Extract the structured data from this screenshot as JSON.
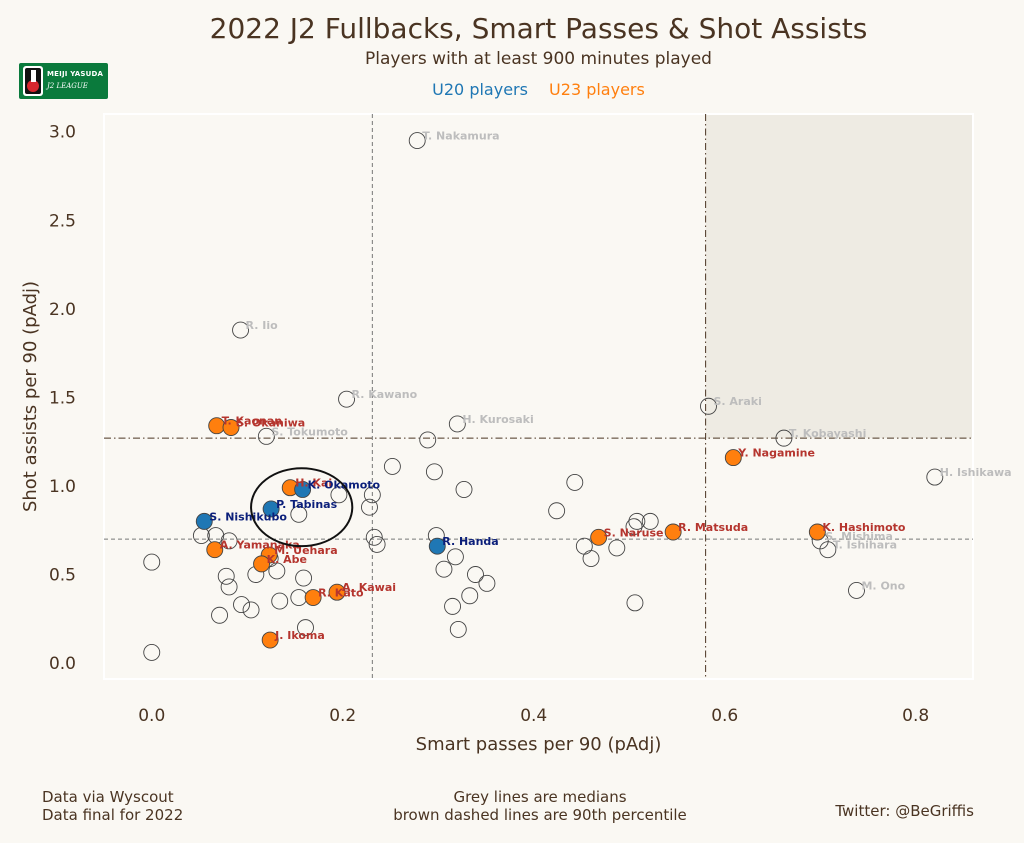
{
  "header": {
    "title": "2022 J2 Fullbacks, Smart Passes & Shot Assists",
    "subtitle": "Players with at least 900 minutes played",
    "legend_u20": "U20 players",
    "legend_u23": "U23 players"
  },
  "logo": {
    "line1": "MEIJI YASUDA",
    "line2": "J2 LEAGUE"
  },
  "footer": {
    "left_line1": "Data via Wyscout",
    "left_line2": "Data final for 2022",
    "mid_line1": "Grey lines are medians",
    "mid_line2": "brown dashed lines are 90th percentile",
    "right": "Twitter: @BeGriffis"
  },
  "colors": {
    "u20": "#1f77b4",
    "u23": "#ff7f0e",
    "u20_label": "#0b1f7a",
    "u23_label": "#b5352e",
    "other_label": "#bdbdbd",
    "quadrant": "#eeebe3"
  },
  "chart_data": {
    "type": "scatter",
    "title": "2022 J2 Fullbacks, Smart Passes & Shot Assists",
    "xlabel": "Smart passes per 90 (pAdj)",
    "ylabel": "Shot assists per 90 (pAdj)",
    "xlim": [
      -0.05,
      0.86
    ],
    "ylim": [
      -0.09,
      3.1
    ],
    "xticks": [
      "0.0",
      "0.2",
      "0.4",
      "0.6",
      "0.8"
    ],
    "xtick_values": [
      0,
      0.2,
      0.4,
      0.6,
      0.8
    ],
    "yticks": [
      "0.0",
      "0.5",
      "1.0",
      "1.5",
      "2.0",
      "2.5",
      "3.0"
    ],
    "ytick_values": [
      0,
      0.5,
      1.0,
      1.5,
      2.0,
      2.5,
      3.0
    ],
    "median_x": 0.231,
    "median_y": 0.7,
    "p90_x": 0.58,
    "p90_y": 1.27,
    "highlight_ellipse": {
      "cx": 0.157,
      "cy": 0.88,
      "rx": 0.053,
      "ry": 0.22
    },
    "points": [
      {
        "x": 0.278,
        "y": 2.95,
        "group": "other",
        "label": "T. Nakamura"
      },
      {
        "x": 0.093,
        "y": 1.88,
        "group": "other",
        "label": "R. Iio"
      },
      {
        "x": 0.204,
        "y": 1.49,
        "group": "other",
        "label": "R. Kawano"
      },
      {
        "x": 0.32,
        "y": 1.35,
        "group": "other",
        "label": "H. Kurosaki"
      },
      {
        "x": 0.583,
        "y": 1.45,
        "group": "other",
        "label": "S. Araki"
      },
      {
        "x": 0.662,
        "y": 1.27,
        "group": "other",
        "label": "T. Kobayashi"
      },
      {
        "x": 0.82,
        "y": 1.05,
        "group": "other",
        "label": "H. Ishikawa"
      },
      {
        "x": 0.12,
        "y": 1.28,
        "group": "other",
        "label": "S. Tokumoto"
      },
      {
        "x": 0.7,
        "y": 0.69,
        "group": "other",
        "label": "S. Mishima"
      },
      {
        "x": 0.708,
        "y": 0.64,
        "group": "other",
        "label": "T. Ishihara"
      },
      {
        "x": 0.738,
        "y": 0.41,
        "group": "other",
        "label": "M. Ono"
      },
      {
        "x": 0.0,
        "y": 0.57,
        "group": "other",
        "label": ""
      },
      {
        "x": 0.0,
        "y": 0.06,
        "group": "other",
        "label": ""
      },
      {
        "x": 0.289,
        "y": 1.26,
        "group": "other",
        "label": ""
      },
      {
        "x": 0.252,
        "y": 1.11,
        "group": "other",
        "label": ""
      },
      {
        "x": 0.296,
        "y": 1.08,
        "group": "other",
        "label": ""
      },
      {
        "x": 0.327,
        "y": 0.98,
        "group": "other",
        "label": ""
      },
      {
        "x": 0.443,
        "y": 1.02,
        "group": "other",
        "label": ""
      },
      {
        "x": 0.424,
        "y": 0.86,
        "group": "other",
        "label": ""
      },
      {
        "x": 0.508,
        "y": 0.8,
        "group": "other",
        "label": ""
      },
      {
        "x": 0.522,
        "y": 0.8,
        "group": "other",
        "label": ""
      },
      {
        "x": 0.505,
        "y": 0.77,
        "group": "other",
        "label": ""
      },
      {
        "x": 0.453,
        "y": 0.66,
        "group": "other",
        "label": ""
      },
      {
        "x": 0.46,
        "y": 0.59,
        "group": "other",
        "label": ""
      },
      {
        "x": 0.487,
        "y": 0.65,
        "group": "other",
        "label": ""
      },
      {
        "x": 0.506,
        "y": 0.34,
        "group": "other",
        "label": ""
      },
      {
        "x": 0.298,
        "y": 0.72,
        "group": "other",
        "label": ""
      },
      {
        "x": 0.306,
        "y": 0.53,
        "group": "other",
        "label": ""
      },
      {
        "x": 0.318,
        "y": 0.6,
        "group": "other",
        "label": ""
      },
      {
        "x": 0.339,
        "y": 0.5,
        "group": "other",
        "label": ""
      },
      {
        "x": 0.351,
        "y": 0.45,
        "group": "other",
        "label": ""
      },
      {
        "x": 0.333,
        "y": 0.38,
        "group": "other",
        "label": ""
      },
      {
        "x": 0.315,
        "y": 0.32,
        "group": "other",
        "label": ""
      },
      {
        "x": 0.321,
        "y": 0.19,
        "group": "other",
        "label": ""
      },
      {
        "x": 0.231,
        "y": 0.95,
        "group": "other",
        "label": ""
      },
      {
        "x": 0.228,
        "y": 0.88,
        "group": "other",
        "label": ""
      },
      {
        "x": 0.196,
        "y": 0.95,
        "group": "other",
        "label": ""
      },
      {
        "x": 0.154,
        "y": 0.84,
        "group": "other",
        "label": ""
      },
      {
        "x": 0.233,
        "y": 0.71,
        "group": "other",
        "label": ""
      },
      {
        "x": 0.236,
        "y": 0.67,
        "group": "other",
        "label": ""
      },
      {
        "x": 0.052,
        "y": 0.72,
        "group": "other",
        "label": ""
      },
      {
        "x": 0.067,
        "y": 0.72,
        "group": "other",
        "label": ""
      },
      {
        "x": 0.081,
        "y": 0.69,
        "group": "other",
        "label": ""
      },
      {
        "x": 0.124,
        "y": 0.59,
        "group": "other",
        "label": ""
      },
      {
        "x": 0.131,
        "y": 0.52,
        "group": "other",
        "label": ""
      },
      {
        "x": 0.109,
        "y": 0.5,
        "group": "other",
        "label": ""
      },
      {
        "x": 0.078,
        "y": 0.49,
        "group": "other",
        "label": ""
      },
      {
        "x": 0.081,
        "y": 0.43,
        "group": "other",
        "label": ""
      },
      {
        "x": 0.159,
        "y": 0.48,
        "group": "other",
        "label": ""
      },
      {
        "x": 0.154,
        "y": 0.37,
        "group": "other",
        "label": ""
      },
      {
        "x": 0.134,
        "y": 0.35,
        "group": "other",
        "label": ""
      },
      {
        "x": 0.094,
        "y": 0.33,
        "group": "other",
        "label": ""
      },
      {
        "x": 0.104,
        "y": 0.3,
        "group": "other",
        "label": ""
      },
      {
        "x": 0.071,
        "y": 0.27,
        "group": "other",
        "label": ""
      },
      {
        "x": 0.161,
        "y": 0.2,
        "group": "other",
        "label": ""
      },
      {
        "x": 0.068,
        "y": 1.34,
        "group": "u23",
        "label": "T. Kaonan"
      },
      {
        "x": 0.083,
        "y": 1.33,
        "group": "u23",
        "label": "S. Okaniwa"
      },
      {
        "x": 0.145,
        "y": 0.99,
        "group": "u23",
        "label": "H. Kai"
      },
      {
        "x": 0.158,
        "y": 0.98,
        "group": "u20",
        "label": "K. Okamoto"
      },
      {
        "x": 0.125,
        "y": 0.87,
        "group": "u20",
        "label": "P. Tabinas"
      },
      {
        "x": 0.055,
        "y": 0.8,
        "group": "u20",
        "label": "S. Nishikubo"
      },
      {
        "x": 0.066,
        "y": 0.64,
        "group": "u23",
        "label": "A. Yamanaka"
      },
      {
        "x": 0.123,
        "y": 0.61,
        "group": "u23",
        "label": "M. Uehara"
      },
      {
        "x": 0.115,
        "y": 0.56,
        "group": "u23",
        "label": "K. Abe"
      },
      {
        "x": 0.194,
        "y": 0.4,
        "group": "u23",
        "label": "A. Kawai"
      },
      {
        "x": 0.169,
        "y": 0.37,
        "group": "u23",
        "label": "R. Kato"
      },
      {
        "x": 0.124,
        "y": 0.13,
        "group": "u23",
        "label": "J. Ikoma"
      },
      {
        "x": 0.299,
        "y": 0.66,
        "group": "u20",
        "label": "R. Handa"
      },
      {
        "x": 0.468,
        "y": 0.71,
        "group": "u23",
        "label": "S. Naruse"
      },
      {
        "x": 0.546,
        "y": 0.74,
        "group": "u23",
        "label": "R. Matsuda"
      },
      {
        "x": 0.609,
        "y": 1.16,
        "group": "u23",
        "label": "Y. Nagamine"
      },
      {
        "x": 0.697,
        "y": 0.74,
        "group": "u23",
        "label": "K. Hashimoto"
      }
    ]
  }
}
